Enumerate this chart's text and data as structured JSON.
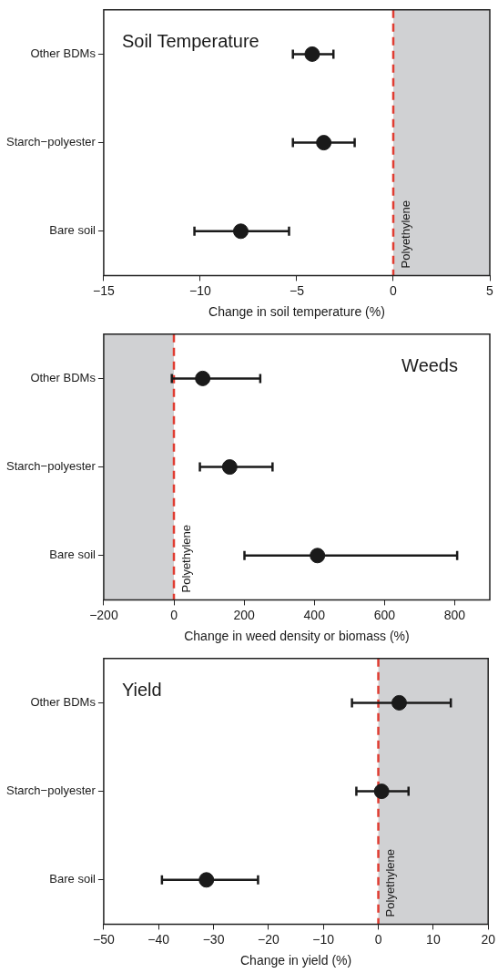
{
  "chart_data": [
    {
      "type": "scatter",
      "orientation": "horizontal",
      "title": "Soil Temperature",
      "xlabel": "Change in soil temperature (%)",
      "categories": [
        "Other BDMs",
        "Starch−polyester",
        "Bare soil"
      ],
      "values": [
        -4.2,
        -3.6,
        -7.9
      ],
      "errors": [
        [
          -5.2,
          -3.1
        ],
        [
          -5.2,
          -2.0
        ],
        [
          -10.3,
          -5.4
        ]
      ],
      "color": "#1a1a1a",
      "marker": "circle",
      "xlim": [
        -15,
        5
      ],
      "xticks": [
        {
          "value": -15,
          "label": "−15"
        },
        {
          "value": -10,
          "label": "−10"
        },
        {
          "value": -5,
          "label": "−5"
        },
        0,
        5
      ],
      "ref_lines": [
        {
          "axis": "x",
          "value": 0,
          "label": "Polyethylene",
          "color": "#e03c31",
          "line_style": "dashed"
        }
      ],
      "bands": [
        {
          "axis": "x",
          "from": 0,
          "to": 5,
          "color": "#d0d1d3"
        }
      ]
    },
    {
      "type": "scatter",
      "orientation": "horizontal",
      "title": "Weeds",
      "xlabel": "Change in weed density or biomass (%)",
      "categories": [
        "Other BDMs",
        "Starch−polyester",
        "Bare soil"
      ],
      "values": [
        82,
        159,
        409
      ],
      "errors": [
        [
          -6,
          246
        ],
        [
          74,
          281
        ],
        [
          201,
          807
        ]
      ],
      "color": "#1a1a1a",
      "marker": "circle",
      "xlim": [
        -200,
        900
      ],
      "xticks": [
        {
          "value": -200,
          "label": "−200"
        },
        0,
        200,
        400,
        600,
        800
      ],
      "ref_lines": [
        {
          "axis": "x",
          "value": 0,
          "label": "Polyethylene",
          "color": "#e03c31",
          "line_style": "dashed"
        }
      ],
      "bands": [
        {
          "axis": "x",
          "from": -200,
          "to": 0,
          "color": "#d0d1d3"
        }
      ]
    },
    {
      "type": "scatter",
      "orientation": "horizontal",
      "title": "Yield",
      "xlabel": "Change in yield (%)",
      "categories": [
        "Other BDMs",
        "Starch−polyester",
        "Bare soil"
      ],
      "values": [
        3.8,
        0.6,
        -31.3
      ],
      "errors": [
        [
          -4.8,
          13.2
        ],
        [
          -4.0,
          5.5
        ],
        [
          -39.4,
          -21.9
        ]
      ],
      "color": "#1a1a1a",
      "marker": "circle",
      "xlim": [
        -50,
        20
      ],
      "xticks": [
        {
          "value": -50,
          "label": "−50"
        },
        {
          "value": -40,
          "label": "−40"
        },
        {
          "value": -30,
          "label": "−30"
        },
        {
          "value": -20,
          "label": "−20"
        },
        {
          "value": -10,
          "label": "−10"
        },
        0,
        10,
        20
      ],
      "ref_lines": [
        {
          "axis": "x",
          "value": 0,
          "label": "Polyethylene",
          "color": "#e03c31",
          "line_style": "dashed"
        }
      ],
      "bands": [
        {
          "axis": "x",
          "from": 0,
          "to": 20,
          "color": "#d0d1d3"
        }
      ]
    }
  ]
}
